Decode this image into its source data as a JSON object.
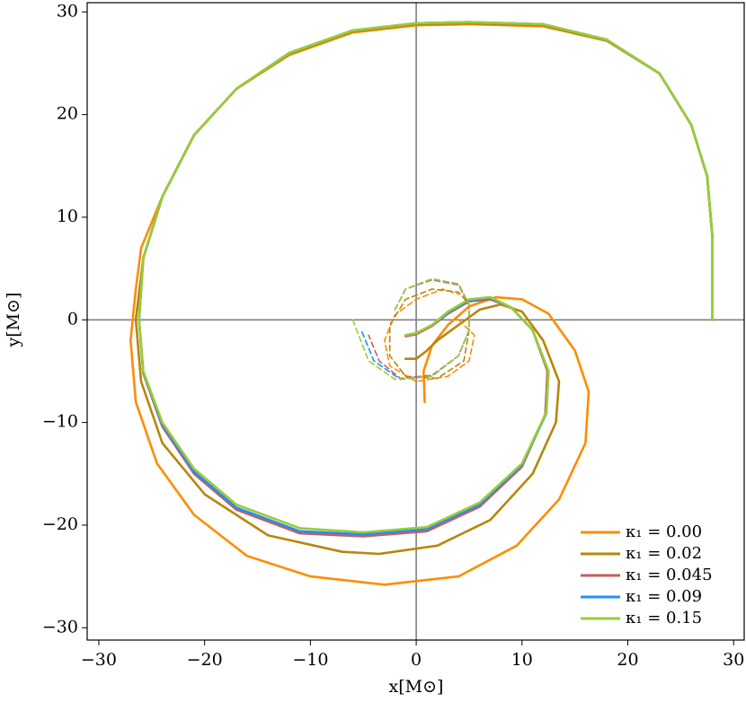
{
  "chart_data": {
    "type": "line",
    "x_label": "x[M⊙]",
    "y_label": "y[M⊙]",
    "xlim": [
      -31.1,
      31.0
    ],
    "ylim": [
      -31.2,
      30.9
    ],
    "xticks": [
      {
        "value": -30,
        "label": "−30"
      },
      {
        "value": -20,
        "label": "−20"
      },
      {
        "value": -10,
        "label": "−10"
      },
      0,
      10,
      20,
      30
    ],
    "yticks": [
      {
        "value": -30,
        "label": "−30"
      },
      {
        "value": -20,
        "label": "−20"
      },
      {
        "value": -10,
        "label": "−10"
      },
      0,
      10,
      20,
      30
    ],
    "legend": "lower right",
    "series": [
      {
        "name": "κ₁ = 0.00",
        "color": "#ff8c00",
        "x": [
          28,
          28,
          27.5,
          26,
          23,
          18,
          12,
          5,
          0,
          -6,
          -12,
          -17,
          -21,
          -24,
          -26,
          -26.5,
          -27,
          -26.5,
          -24.5,
          -21,
          -16,
          -10,
          -3,
          4,
          9.5,
          13.5,
          16,
          16.3,
          15,
          12.5,
          10,
          7.5,
          5,
          3,
          1.5,
          0.7,
          0.8
        ],
        "y": [
          0,
          8,
          14,
          19,
          24,
          27.2,
          28.6,
          28.8,
          28.7,
          28,
          25.8,
          22.5,
          18,
          12,
          7,
          3,
          -2,
          -8,
          -14,
          -19,
          -23,
          -25,
          -25.8,
          -25,
          -22,
          -17.5,
          -12,
          -7,
          -3,
          0.6,
          2,
          2.2,
          1.3,
          -0.5,
          -2.5,
          -5,
          -8
        ]
      },
      {
        "name": "κ₁ = 0.02",
        "color": "#b8860b",
        "x": [
          28,
          28,
          27.5,
          26,
          23,
          18,
          12,
          5,
          0,
          -6,
          -12,
          -17,
          -21,
          -24,
          -25.8,
          -26.5,
          -26,
          -24,
          -20,
          -14,
          -7,
          -3.5,
          2,
          7,
          11,
          13.2,
          13.5,
          12,
          10,
          8,
          6,
          4,
          2,
          1,
          0,
          -1
        ],
        "y": [
          0,
          8,
          14,
          19,
          24,
          27.2,
          28.7,
          28.9,
          28.8,
          28.1,
          25.9,
          22.5,
          18,
          12,
          6,
          0,
          -6,
          -12,
          -17,
          -21,
          -22.6,
          -22.8,
          -22,
          -19.5,
          -15,
          -10,
          -6,
          -2,
          0.8,
          1.5,
          1,
          -0.5,
          -2,
          -3,
          -3.8,
          -3.8
        ]
      },
      {
        "name": "κ₁ = 0.045",
        "color": "#cd5c5c",
        "x": [
          28,
          28,
          27.5,
          26,
          23,
          18,
          12,
          5,
          0,
          -6,
          -12,
          -17,
          -21,
          -24,
          -25.8,
          -26.2,
          -25.8,
          -24,
          -21,
          -17,
          -11,
          -5,
          1,
          6,
          10,
          12.2,
          12.4,
          11,
          9,
          7,
          5,
          3,
          1.5,
          0,
          -1
        ],
        "y": [
          0,
          8,
          14,
          19,
          24,
          27.3,
          28.8,
          29,
          28.9,
          28.2,
          26,
          22.5,
          18,
          12,
          6,
          0,
          -5.2,
          -10.4,
          -15,
          -18.5,
          -20.8,
          -21.1,
          -20.6,
          -18.2,
          -14.3,
          -9.2,
          -5,
          -1,
          1.2,
          2,
          1.8,
          0.6,
          -0.6,
          -1.4,
          -1.6
        ]
      },
      {
        "name": "κ₁ = 0.09",
        "color": "#1e90ff",
        "x": [
          28,
          28,
          27.5,
          26,
          23,
          18,
          12,
          5,
          0,
          -6,
          -12,
          -17,
          -21,
          -24,
          -25.8,
          -26.2,
          -25.8,
          -24,
          -21,
          -17,
          -11,
          -5,
          1,
          6,
          10,
          12.3,
          12.5,
          11,
          9,
          7,
          5,
          3,
          1.5,
          0,
          -1
        ],
        "y": [
          0,
          8,
          14,
          19,
          24,
          27.3,
          28.8,
          29,
          28.9,
          28.2,
          26,
          22.5,
          18,
          12,
          6,
          0,
          -5.1,
          -10.2,
          -14.8,
          -18.3,
          -20.6,
          -20.9,
          -20.4,
          -18,
          -14.1,
          -9.1,
          -5,
          -1,
          1.2,
          2.1,
          1.9,
          0.7,
          -0.5,
          -1.3,
          -1.5
        ]
      },
      {
        "name": "κ₁ = 0.15",
        "color": "#9acd32",
        "x": [
          28,
          28,
          27.5,
          26,
          23,
          18,
          12,
          5,
          0,
          -6,
          -12,
          -17,
          -21,
          -24,
          -25.8,
          -26.2,
          -25.8,
          -24,
          -21,
          -17,
          -11,
          -5,
          1,
          6,
          10,
          12.3,
          12.5,
          11,
          9,
          7,
          5,
          3,
          1.5,
          0,
          -1
        ],
        "y": [
          0,
          8,
          14,
          19,
          24,
          27.3,
          28.8,
          29,
          28.9,
          28.2,
          26,
          22.5,
          18,
          12,
          6,
          0,
          -5,
          -10,
          -14.5,
          -18,
          -20.3,
          -20.7,
          -20.2,
          -17.8,
          -14,
          -9,
          -5,
          -1,
          1.2,
          2.2,
          2,
          0.8,
          -0.5,
          -1.3,
          -1.5
        ]
      },
      {
        "color": "#ff8c00",
        "dashed": true,
        "x": [
          4,
          5.5,
          5,
          3,
          0,
          -2.5,
          -3,
          -2,
          0,
          2.5,
          4
        ],
        "y": [
          0,
          -1.5,
          -4,
          -5.5,
          -6,
          -4.5,
          -2,
          0.5,
          2,
          3,
          2.5
        ]
      },
      {
        "color": "#b8860b",
        "dashed": true,
        "x": [
          5,
          4.5,
          2,
          -1,
          -2.5,
          -2.5,
          -1,
          1.5,
          4,
          5
        ],
        "y": [
          -1,
          -4,
          -5.7,
          -5.5,
          -3.5,
          -0.5,
          2,
          3,
          2.7,
          1.5
        ]
      },
      {
        "color": "#cd5c5c",
        "dashed": true,
        "x": [
          -2,
          -1,
          1.5,
          4,
          5,
          5,
          4,
          1.5,
          -1.5,
          -3.5,
          -4.5
        ],
        "y": [
          1,
          3,
          3.9,
          3.4,
          1.4,
          -1,
          -3.5,
          -5.4,
          -5.7,
          -4,
          -1.5
        ]
      },
      {
        "color": "#1e90ff",
        "dashed": true,
        "x": [
          -2,
          -1,
          1.5,
          4,
          5,
          5,
          4,
          1.5,
          -1.5,
          -4,
          -5.2
        ],
        "y": [
          1,
          3,
          4,
          3.5,
          1.5,
          -1,
          -3.5,
          -5.5,
          -5.8,
          -4,
          -1
        ]
      },
      {
        "color": "#9acd32",
        "dashed": true,
        "x": [
          -2,
          -1,
          1.5,
          4,
          5,
          5,
          4,
          1.5,
          -2,
          -4.5,
          -6
        ],
        "y": [
          1,
          3,
          4,
          3.5,
          1.5,
          -1,
          -3.5,
          -5.5,
          -5.8,
          -4,
          0
        ]
      }
    ]
  }
}
